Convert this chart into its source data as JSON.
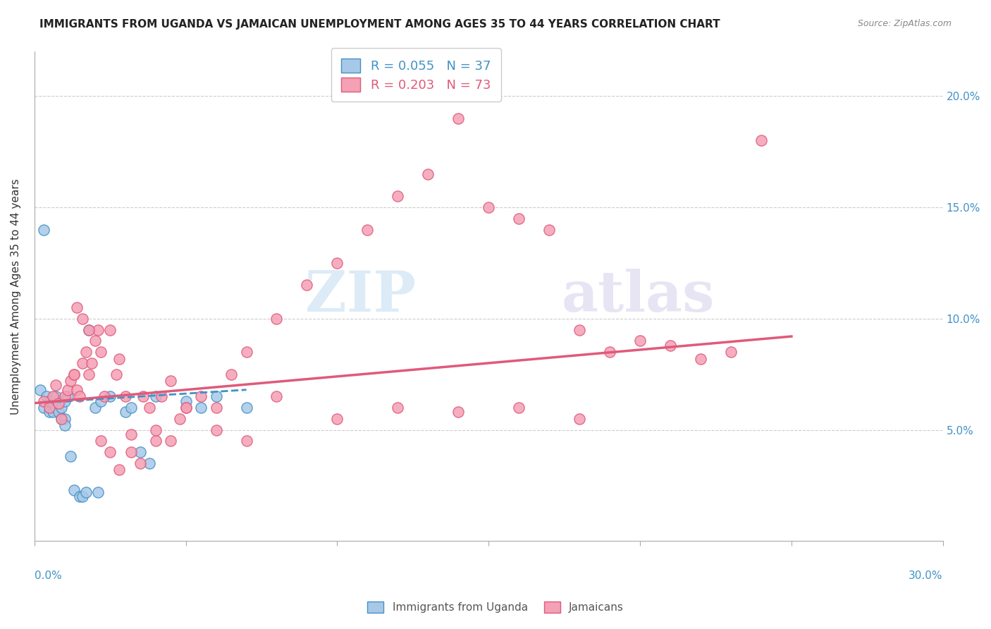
{
  "title": "IMMIGRANTS FROM UGANDA VS JAMAICAN UNEMPLOYMENT AMONG AGES 35 TO 44 YEARS CORRELATION CHART",
  "source": "Source: ZipAtlas.com",
  "ylabel": "Unemployment Among Ages 35 to 44 years",
  "ytick_labels": [
    "5.0%",
    "10.0%",
    "15.0%",
    "20.0%"
  ],
  "ytick_values": [
    0.05,
    0.1,
    0.15,
    0.2
  ],
  "xlim": [
    0.0,
    0.3
  ],
  "ylim": [
    0.0,
    0.22
  ],
  "legend_line1": "R = 0.055   N = 37",
  "legend_line2": "R = 0.203   N = 73",
  "watermark_zip": "ZIP",
  "watermark_atlas": "atlas",
  "uganda_color": "#a8c8e8",
  "jamaica_color": "#f4a0b5",
  "uganda_edge_color": "#4292c6",
  "jamaica_edge_color": "#e05a7a",
  "uganda_trend_color": "#4292c6",
  "jamaica_trend_color": "#e05a7a",
  "uganda_scatter_x": [
    0.002,
    0.003,
    0.004,
    0.005,
    0.005,
    0.006,
    0.006,
    0.007,
    0.007,
    0.008,
    0.008,
    0.009,
    0.009,
    0.01,
    0.01,
    0.01,
    0.011,
    0.012,
    0.013,
    0.015,
    0.016,
    0.017,
    0.018,
    0.02,
    0.021,
    0.022,
    0.025,
    0.03,
    0.032,
    0.035,
    0.038,
    0.04,
    0.05,
    0.055,
    0.06,
    0.07,
    0.003
  ],
  "uganda_scatter_y": [
    0.068,
    0.06,
    0.065,
    0.063,
    0.058,
    0.062,
    0.058,
    0.065,
    0.06,
    0.062,
    0.058,
    0.06,
    0.055,
    0.063,
    0.055,
    0.052,
    0.065,
    0.038,
    0.023,
    0.02,
    0.02,
    0.022,
    0.095,
    0.06,
    0.022,
    0.063,
    0.065,
    0.058,
    0.06,
    0.04,
    0.035,
    0.065,
    0.063,
    0.06,
    0.065,
    0.06,
    0.14
  ],
  "jamaica_scatter_x": [
    0.003,
    0.005,
    0.006,
    0.007,
    0.008,
    0.009,
    0.01,
    0.011,
    0.012,
    0.013,
    0.014,
    0.015,
    0.016,
    0.017,
    0.018,
    0.019,
    0.02,
    0.021,
    0.022,
    0.023,
    0.025,
    0.027,
    0.028,
    0.03,
    0.032,
    0.035,
    0.038,
    0.04,
    0.042,
    0.045,
    0.048,
    0.05,
    0.055,
    0.06,
    0.065,
    0.07,
    0.08,
    0.09,
    0.1,
    0.11,
    0.12,
    0.13,
    0.14,
    0.15,
    0.16,
    0.17,
    0.18,
    0.19,
    0.2,
    0.21,
    0.22,
    0.23,
    0.24,
    0.013,
    0.014,
    0.016,
    0.018,
    0.022,
    0.025,
    0.028,
    0.032,
    0.036,
    0.04,
    0.045,
    0.05,
    0.06,
    0.07,
    0.08,
    0.1,
    0.12,
    0.14,
    0.16,
    0.18
  ],
  "jamaica_scatter_y": [
    0.063,
    0.06,
    0.065,
    0.07,
    0.062,
    0.055,
    0.065,
    0.068,
    0.072,
    0.075,
    0.068,
    0.065,
    0.08,
    0.085,
    0.075,
    0.08,
    0.09,
    0.095,
    0.085,
    0.065,
    0.095,
    0.075,
    0.082,
    0.065,
    0.048,
    0.035,
    0.06,
    0.045,
    0.065,
    0.072,
    0.055,
    0.06,
    0.065,
    0.06,
    0.075,
    0.085,
    0.1,
    0.115,
    0.125,
    0.14,
    0.155,
    0.165,
    0.19,
    0.15,
    0.145,
    0.14,
    0.095,
    0.085,
    0.09,
    0.088,
    0.082,
    0.085,
    0.18,
    0.075,
    0.105,
    0.1,
    0.095,
    0.045,
    0.04,
    0.032,
    0.04,
    0.065,
    0.05,
    0.045,
    0.06,
    0.05,
    0.045,
    0.065,
    0.055,
    0.06,
    0.058,
    0.06,
    0.055
  ],
  "uganda_trend_x": [
    0.0,
    0.07
  ],
  "uganda_trend_y": [
    0.062,
    0.068
  ],
  "jamaica_trend_x": [
    0.0,
    0.25
  ],
  "jamaica_trend_y": [
    0.062,
    0.092
  ],
  "right_ytick_color": "#4292c6",
  "bottom_label_color": "#4292c6"
}
